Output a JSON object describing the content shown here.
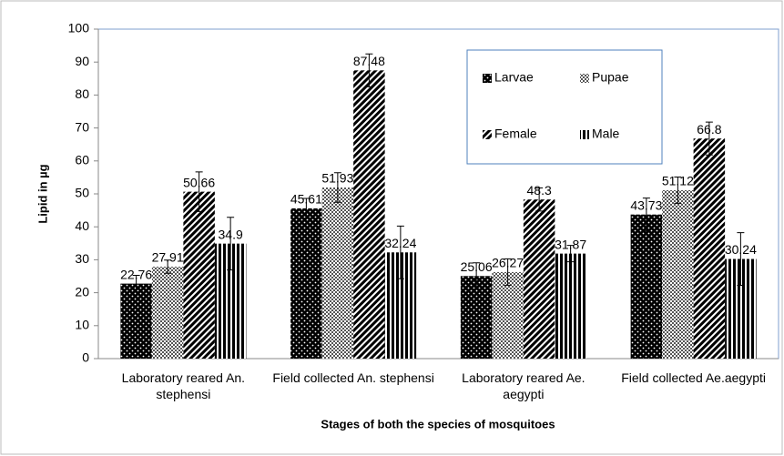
{
  "chart_data": {
    "type": "bar",
    "xlabel": "Stages of both the species of mosquitoes",
    "ylabel": "Lipid in µg",
    "categories": [
      "Laboratory reared An. stephensi",
      "Field collected An. stephensi",
      "Laboratory reared Ae. aegypti",
      "Field collected Ae.aegypti"
    ],
    "series": [
      {
        "name": "Larvae",
        "values": [
          22.76,
          45.61,
          25.06,
          43.73
        ],
        "errors": [
          2.5,
          3,
          4,
          5
        ]
      },
      {
        "name": "Pupae",
        "values": [
          27.91,
          51.93,
          26.27,
          51.12
        ],
        "errors": [
          2,
          4.5,
          4,
          4
        ]
      },
      {
        "name": "Female",
        "values": [
          50.66,
          87.48,
          48.3,
          66.8
        ],
        "errors": [
          6,
          5,
          3.5,
          5
        ]
      },
      {
        "name": "Male",
        "values": [
          34.9,
          32.24,
          31.87,
          30.24
        ],
        "errors": [
          8,
          8,
          2.5,
          8
        ]
      }
    ],
    "ylim": [
      0,
      100
    ],
    "yticks": [
      0,
      10,
      20,
      30,
      40,
      50,
      60,
      70,
      80,
      90,
      100
    ],
    "legend": "top-right"
  }
}
